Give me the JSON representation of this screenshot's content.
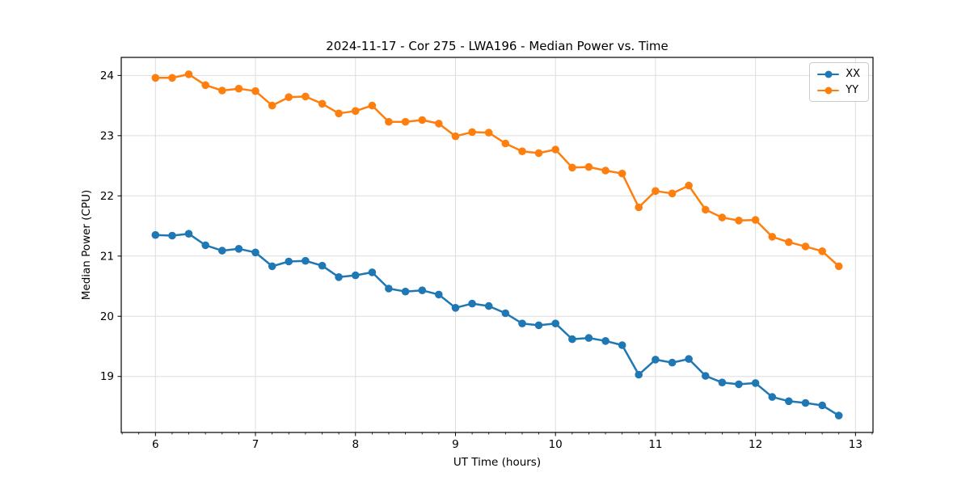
{
  "figure": {
    "background": "#ffffff",
    "spine_color": "#000000",
    "grid_color": "#dedede",
    "text_color": "#000000"
  },
  "chart_data": {
    "type": "line",
    "title": "2024-11-17 - Cor 275 - LWA196 - Median Power vs. Time",
    "xlabel": "UT Time (hours)",
    "ylabel": "Median Power (CPU)",
    "legend_position": "upper right",
    "grid": true,
    "xlim": [
      5.658,
      13.175
    ],
    "ylim": [
      18.07,
      24.3
    ],
    "x_ticks": [
      6,
      7,
      8,
      9,
      10,
      11,
      12,
      13
    ],
    "y_ticks": [
      19,
      20,
      21,
      22,
      23,
      24
    ],
    "x_minor_tick_step": 0.16666667,
    "x": [
      6.0,
      6.167,
      6.333,
      6.5,
      6.667,
      6.833,
      7.0,
      7.167,
      7.333,
      7.5,
      7.667,
      7.833,
      8.0,
      8.167,
      8.333,
      8.5,
      8.667,
      8.833,
      9.0,
      9.167,
      9.333,
      9.5,
      9.667,
      9.833,
      10.0,
      10.167,
      10.333,
      10.5,
      10.667,
      10.833,
      11.0,
      11.167,
      11.333,
      11.5,
      11.667,
      11.833,
      12.0,
      12.167,
      12.333,
      12.5,
      12.667,
      12.833
    ],
    "series": [
      {
        "name": "XX",
        "color": "#1f77b4",
        "values": [
          21.35,
          21.34,
          21.37,
          21.18,
          21.09,
          21.12,
          21.06,
          20.83,
          20.91,
          20.92,
          20.84,
          20.65,
          20.68,
          20.73,
          20.46,
          20.41,
          20.43,
          20.36,
          20.14,
          20.21,
          20.17,
          20.05,
          19.88,
          19.85,
          19.88,
          19.62,
          19.64,
          19.59,
          19.52,
          19.03,
          19.28,
          19.23,
          19.29,
          19.01,
          18.9,
          18.87,
          18.89,
          18.66,
          18.59,
          18.56,
          18.52,
          18.35
        ]
      },
      {
        "name": "YY",
        "color": "#ff7f0e",
        "values": [
          23.96,
          23.96,
          24.02,
          23.84,
          23.75,
          23.78,
          23.74,
          23.5,
          23.64,
          23.65,
          23.53,
          23.37,
          23.41,
          23.5,
          23.23,
          23.23,
          23.26,
          23.2,
          22.99,
          23.06,
          23.05,
          22.87,
          22.74,
          22.71,
          22.77,
          22.47,
          22.48,
          22.42,
          22.37,
          21.81,
          22.08,
          22.04,
          22.17,
          21.77,
          21.64,
          21.59,
          21.6,
          21.32,
          21.23,
          21.16,
          21.08,
          20.83
        ]
      }
    ]
  }
}
